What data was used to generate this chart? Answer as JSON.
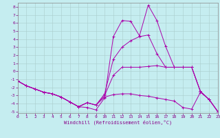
{
  "xlabel": "Windchill (Refroidissement éolien,°C)",
  "xlim": [
    0,
    23
  ],
  "ylim": [
    -5.2,
    8.5
  ],
  "xticks": [
    0,
    1,
    2,
    3,
    4,
    5,
    6,
    7,
    8,
    9,
    10,
    11,
    12,
    13,
    14,
    15,
    16,
    17,
    18,
    19,
    20,
    21,
    22,
    23
  ],
  "yticks": [
    -5,
    -4,
    -3,
    -2,
    -1,
    0,
    1,
    2,
    3,
    4,
    5,
    6,
    7,
    8
  ],
  "background_color": "#c5edf0",
  "line_color": "#aa00aa",
  "grid_color": "#aacccc",
  "lines": [
    [
      -1.2,
      -1.8,
      -2.2,
      -2.6,
      -2.8,
      -3.2,
      -3.8,
      -4.4,
      -4.5,
      -4.8,
      -3.3,
      4.3,
      6.3,
      6.2,
      4.4,
      8.2,
      6.3,
      3.1,
      0.5,
      0.5,
      0.5,
      -2.5,
      -3.5,
      -5.0
    ],
    [
      -1.2,
      -1.8,
      -2.2,
      -2.6,
      -2.8,
      -3.2,
      -3.8,
      -4.4,
      -3.9,
      -4.2,
      -3.2,
      -2.9,
      -2.8,
      -2.8,
      -3.0,
      -3.1,
      -3.3,
      -3.5,
      -3.7,
      -4.5,
      -4.7,
      -2.6,
      -3.5,
      -5.0
    ],
    [
      -1.2,
      -1.8,
      -2.2,
      -2.6,
      -2.8,
      -3.2,
      -3.8,
      -4.4,
      -3.9,
      -4.2,
      -3.0,
      -0.5,
      0.5,
      0.5,
      0.5,
      0.6,
      0.7,
      0.5,
      0.5,
      0.5,
      0.5,
      -2.5,
      -3.5,
      -5.0
    ],
    [
      -1.2,
      -1.8,
      -2.2,
      -2.6,
      -2.8,
      -3.2,
      -3.8,
      -4.4,
      -3.9,
      -4.2,
      -2.8,
      1.5,
      3.0,
      3.8,
      4.3,
      4.5,
      2.2,
      0.5,
      0.5,
      0.5,
      0.5,
      -2.5,
      -3.5,
      -5.0
    ]
  ]
}
